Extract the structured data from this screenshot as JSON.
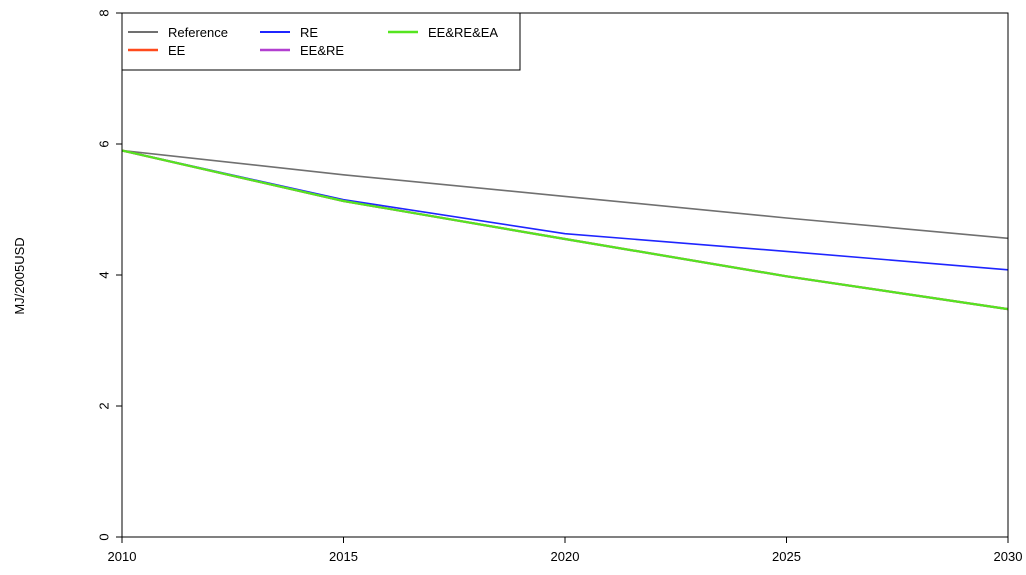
{
  "chart_data": {
    "type": "line",
    "title": "",
    "xlabel": "",
    "ylabel": "MJ/2005USD",
    "x": [
      2010,
      2015,
      2020,
      2025,
      2030
    ],
    "xlim": [
      2010,
      2030
    ],
    "ylim": [
      0,
      8
    ],
    "xticks": [
      "2010",
      "2015",
      "2020",
      "2025",
      "2030"
    ],
    "yticks": [
      "0",
      "2",
      "4",
      "6",
      "8"
    ],
    "grid": false,
    "legend_position": "top-left",
    "series": [
      {
        "name": "Reference",
        "color": "#707070",
        "width": 1.6,
        "values": [
          5.9,
          5.53,
          5.2,
          4.87,
          4.56
        ]
      },
      {
        "name": "EE",
        "color": "#ff4a1c",
        "width": 2.2,
        "values": [
          5.9,
          5.13,
          4.55,
          3.98,
          3.48
        ]
      },
      {
        "name": "RE",
        "color": "#1f25ff",
        "width": 1.6,
        "values": [
          5.9,
          5.15,
          4.63,
          4.36,
          4.08
        ]
      },
      {
        "name": "EE&RE",
        "color": "#b23fd0",
        "width": 2.2,
        "values": [
          5.9,
          5.13,
          4.55,
          3.98,
          3.48
        ]
      },
      {
        "name": "EE&RE&EA",
        "color": "#55e51f",
        "width": 2.2,
        "values": [
          5.9,
          5.13,
          4.55,
          3.98,
          3.48
        ]
      }
    ]
  }
}
